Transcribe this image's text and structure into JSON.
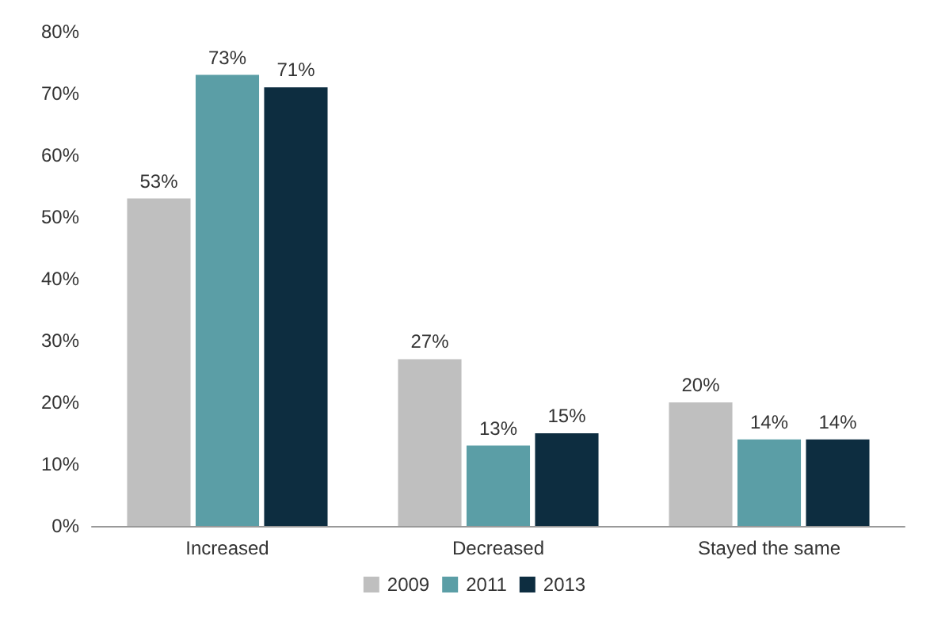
{
  "chart_data": {
    "type": "bar",
    "categories": [
      "Increased",
      "Decreased",
      "Stayed the same"
    ],
    "series": [
      {
        "name": "2009",
        "color": "#bfbfbf",
        "values": [
          53,
          27,
          20
        ],
        "value_labels": [
          "53%",
          "27%",
          "20%"
        ]
      },
      {
        "name": "2011",
        "color": "#5b9ea6",
        "values": [
          73,
          13,
          14
        ],
        "value_labels": [
          "73%",
          "13%",
          "14%"
        ]
      },
      {
        "name": "2013",
        "color": "#0d2d40",
        "values": [
          71,
          15,
          14
        ],
        "value_labels": [
          "71%",
          "15%",
          "14%"
        ]
      }
    ],
    "ylim": [
      0,
      80
    ],
    "yticks": [
      {
        "value": 0,
        "label": "0%"
      },
      {
        "value": 10,
        "label": "10%"
      },
      {
        "value": 20,
        "label": "20%"
      },
      {
        "value": 30,
        "label": "30%"
      },
      {
        "value": 40,
        "label": "40%"
      },
      {
        "value": 50,
        "label": "50%"
      },
      {
        "value": 60,
        "label": "60%"
      },
      {
        "value": 70,
        "label": "70%"
      },
      {
        "value": 80,
        "label": "80%"
      }
    ],
    "grid": false,
    "legend": "bottom"
  }
}
